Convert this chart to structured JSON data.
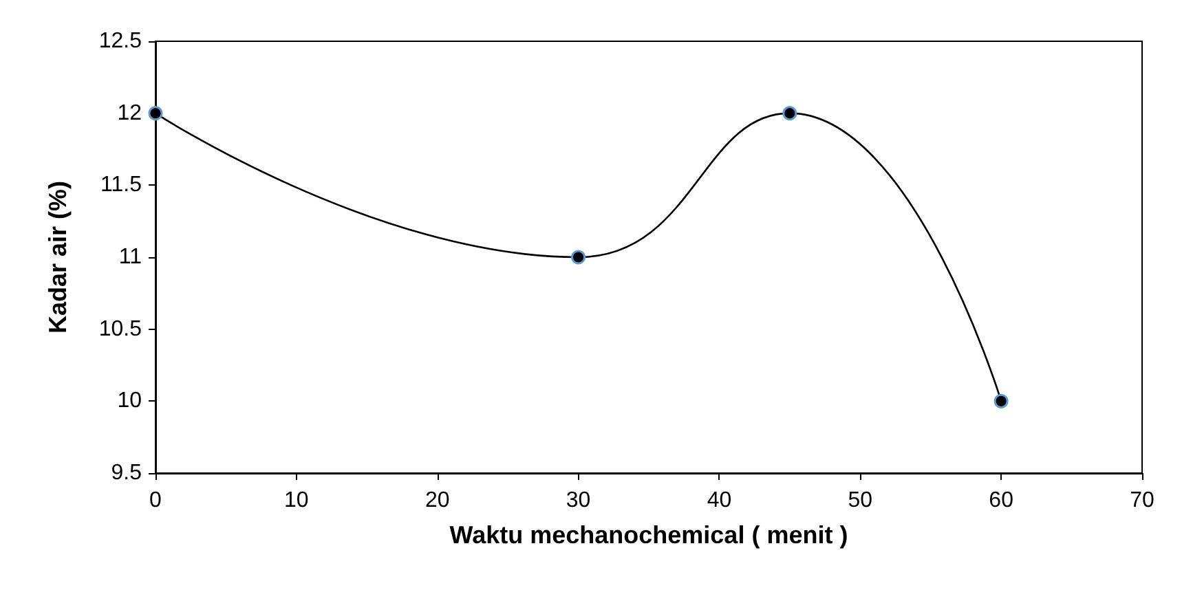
{
  "chart_data": {
    "type": "line",
    "xlabel": "Waktu mechanochemical ( menit )",
    "ylabel": "Kadar air (%)",
    "x": [
      0,
      30,
      45,
      60
    ],
    "series": [
      {
        "color": "#000000",
        "values": [
          12,
          11,
          12,
          10
        ]
      }
    ],
    "xlim": [
      0,
      70
    ],
    "xticks": [
      0,
      10,
      20,
      30,
      40,
      50,
      60,
      70
    ],
    "ylim": [
      9.5,
      12.5
    ],
    "yticks": [
      9.5,
      10,
      10.5,
      11,
      11.5,
      12,
      12.5
    ],
    "grid": false,
    "marker": "circle",
    "line_style": "solid"
  }
}
